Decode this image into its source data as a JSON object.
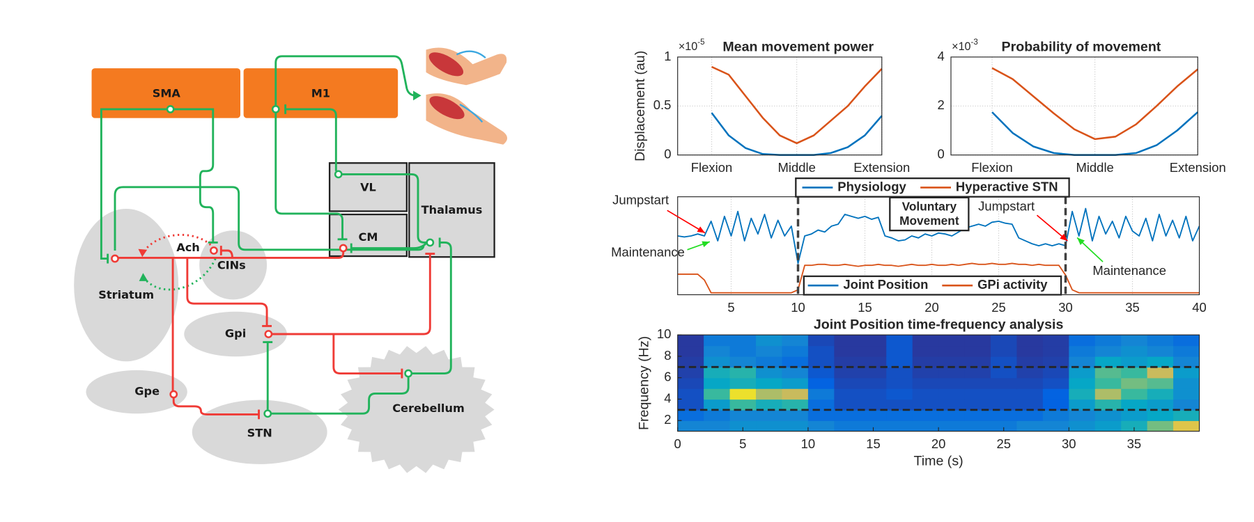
{
  "diagram": {
    "nodes": [
      "SMA",
      "M1",
      "VL",
      "CM",
      "Thalamus",
      "Striatum",
      "Ach",
      "CINs",
      "Gpi",
      "Gpe",
      "STN",
      "Cerebellum"
    ]
  },
  "chart_data": [
    {
      "type": "line",
      "title": "Mean movement power",
      "y_exponent": {
        "base": "×10",
        "exponent": "-5"
      },
      "ylabel": "Displacement (au)",
      "x": [
        0,
        10,
        20,
        30,
        40,
        50,
        60,
        70,
        80,
        90,
        100
      ],
      "xlim": [
        -20,
        100
      ],
      "ylim": [
        0,
        1
      ],
      "xticks": [
        {
          "value": 0,
          "label": "Flexion"
        },
        {
          "value": 50,
          "label": "Middle"
        },
        {
          "value": 100,
          "label": "Extension"
        }
      ],
      "yticks": [
        0,
        0.5,
        1
      ],
      "grid": true,
      "legend": true,
      "series": [
        {
          "name": "Physiology",
          "color": "#0072bd",
          "values": [
            0.43,
            0.2,
            0.07,
            0.01,
            0,
            0,
            0,
            0.02,
            0.08,
            0.2,
            0.4
          ]
        },
        {
          "name": "Hyperactive STN",
          "color": "#d95319",
          "values": [
            0.9,
            0.82,
            0.6,
            0.38,
            0.2,
            0.12,
            0.2,
            0.35,
            0.5,
            0.7,
            0.88
          ]
        }
      ]
    },
    {
      "type": "line",
      "title": "Probability of movement",
      "y_exponent": {
        "base": "×10",
        "exponent": "-3"
      },
      "x": [
        0,
        10,
        20,
        30,
        40,
        50,
        60,
        70,
        80,
        90,
        100
      ],
      "xlim": [
        -20,
        100
      ],
      "ylim": [
        0,
        4
      ],
      "xticks": [
        {
          "value": 0,
          "label": "Flexion"
        },
        {
          "value": 50,
          "label": "Middle"
        },
        {
          "value": 100,
          "label": "Extension"
        }
      ],
      "yticks": [
        0,
        2,
        4
      ],
      "grid": true,
      "series": [
        {
          "color": "#0072bd",
          "values": [
            1.75,
            0.9,
            0.35,
            0.08,
            0,
            0,
            0,
            0.08,
            0.4,
            1.0,
            1.75
          ]
        },
        {
          "color": "#d95319",
          "values": [
            3.55,
            3.1,
            2.4,
            1.7,
            1.05,
            0.65,
            0.75,
            1.25,
            2.0,
            2.8,
            3.5
          ]
        }
      ]
    },
    {
      "type": "line",
      "x": [
        1,
        1.5,
        2,
        2.5,
        3,
        3.5,
        4,
        4.5,
        5,
        5.5,
        6,
        6.5,
        7,
        7.5,
        8,
        8.5,
        9,
        9.5,
        10,
        10.5,
        11,
        11.5,
        12,
        12.5,
        13,
        13.5,
        14,
        14.5,
        15,
        15.5,
        16,
        16.5,
        17,
        17.5,
        18,
        18.5,
        19,
        19.5,
        20,
        20.5,
        21,
        21.5,
        22,
        22.5,
        23,
        23.5,
        24,
        24.5,
        25,
        25.5,
        26,
        26.5,
        27,
        27.5,
        28,
        28.5,
        29,
        29.5,
        30,
        30.5,
        31,
        31.5,
        32,
        32.5,
        33,
        33.5,
        34,
        34.5,
        35,
        35.5,
        36,
        36.5,
        37,
        37.5,
        38,
        38.5,
        39,
        39.5,
        40
      ],
      "xlim": [
        1,
        40
      ],
      "ylim": [
        0,
        1
      ],
      "xticks": [
        5,
        10,
        15,
        20,
        25,
        30,
        35,
        40
      ],
      "grid": true,
      "legend": true,
      "vlines": [
        10,
        30
      ],
      "series": [
        {
          "name": "Joint Position",
          "color": "#0072bd",
          "values": [
            0.6,
            0.59,
            0.6,
            0.62,
            0.6,
            0.75,
            0.55,
            0.8,
            0.6,
            0.85,
            0.55,
            0.78,
            0.62,
            0.82,
            0.58,
            0.76,
            0.6,
            0.7,
            0.32,
            0.6,
            0.62,
            0.66,
            0.64,
            0.7,
            0.72,
            0.82,
            0.8,
            0.78,
            0.8,
            0.77,
            0.79,
            0.6,
            0.58,
            0.55,
            0.56,
            0.6,
            0.58,
            0.62,
            0.6,
            0.63,
            0.62,
            0.6,
            0.64,
            0.68,
            0.7,
            0.72,
            0.7,
            0.74,
            0.75,
            0.73,
            0.72,
            0.58,
            0.55,
            0.52,
            0.5,
            0.52,
            0.5,
            0.52,
            0.5,
            0.85,
            0.6,
            0.88,
            0.55,
            0.8,
            0.62,
            0.75,
            0.58,
            0.8,
            0.65,
            0.6,
            0.78,
            0.55,
            0.82,
            0.6,
            0.76,
            0.58,
            0.8,
            0.55,
            0.7
          ]
        },
        {
          "name": "GPi activity",
          "color": "#d95319",
          "values": [
            0.21,
            0.21,
            0.21,
            0.21,
            0.15,
            0.02,
            0.02,
            0.02,
            0.02,
            0.02,
            0.02,
            0.02,
            0.02,
            0.02,
            0.02,
            0.02,
            0.02,
            0.02,
            0.05,
            0.3,
            0.3,
            0.31,
            0.31,
            0.3,
            0.3,
            0.31,
            0.3,
            0.29,
            0.3,
            0.3,
            0.31,
            0.3,
            0.3,
            0.29,
            0.3,
            0.31,
            0.3,
            0.3,
            0.31,
            0.3,
            0.3,
            0.31,
            0.3,
            0.31,
            0.32,
            0.31,
            0.31,
            0.32,
            0.31,
            0.31,
            0.32,
            0.31,
            0.31,
            0.3,
            0.31,
            0.3,
            0.3,
            0.3,
            0.2,
            0.05,
            0.02,
            0.02,
            0.02,
            0.02,
            0.02,
            0.02,
            0.02,
            0.02,
            0.02,
            0.02,
            0.02,
            0.02,
            0.02,
            0.02,
            0.02,
            0.02,
            0.02,
            0.02,
            0.02
          ]
        }
      ],
      "annotations": [
        {
          "text": "Jumpstart",
          "color": "#ff0000"
        },
        {
          "text": "Maintenance",
          "color": "#22dd22"
        },
        {
          "text": "Jumpstart",
          "color": "#ff0000"
        },
        {
          "text": "Maintenance",
          "color": "#22dd22"
        }
      ],
      "box_label": [
        "Voluntary",
        "Movement"
      ]
    },
    {
      "type": "heatmap",
      "title": "Joint Position time-frequency analysis",
      "xlabel": "Time (s)",
      "ylabel": "Frequency (Hz)",
      "colormap": "parula",
      "xlim": [
        0,
        40
      ],
      "ylim": [
        1,
        10
      ],
      "xticks": [
        0,
        5,
        10,
        15,
        20,
        25,
        30,
        35
      ],
      "yticks": [
        2,
        4,
        6,
        8,
        10
      ],
      "hlines": [
        3,
        7
      ],
      "x_edges": [
        0,
        2,
        4,
        6,
        8,
        10,
        12,
        14,
        16,
        18,
        20,
        22,
        24,
        26,
        28,
        30,
        32,
        34,
        36,
        38,
        40
      ],
      "y_edges": [
        1,
        2,
        3,
        4,
        5,
        6,
        7,
        8,
        9,
        10
      ],
      "z": [
        [
          0.3,
          0.3,
          0.35,
          0.35,
          0.35,
          0.3,
          0.25,
          0.25,
          0.25,
          0.25,
          0.25,
          0.25,
          0.25,
          0.3,
          0.3,
          0.35,
          0.4,
          0.5,
          0.7,
          0.9
        ],
        [
          0.2,
          0.25,
          0.3,
          0.3,
          0.3,
          0.2,
          0.2,
          0.2,
          0.2,
          0.2,
          0.2,
          0.2,
          0.2,
          0.2,
          0.25,
          0.3,
          0.35,
          0.4,
          0.45,
          0.5
        ],
        [
          0.1,
          0.4,
          0.6,
          0.5,
          0.55,
          0.2,
          0.1,
          0.1,
          0.1,
          0.1,
          0.1,
          0.1,
          0.1,
          0.1,
          0.15,
          0.4,
          0.55,
          0.45,
          0.4,
          0.3
        ],
        [
          0.1,
          0.6,
          0.95,
          0.8,
          0.85,
          0.25,
          0.1,
          0.1,
          0.12,
          0.1,
          0.1,
          0.1,
          0.1,
          0.1,
          0.15,
          0.5,
          0.8,
          0.6,
          0.5,
          0.35
        ],
        [
          0.08,
          0.45,
          0.5,
          0.45,
          0.4,
          0.15,
          0.08,
          0.08,
          0.1,
          0.08,
          0.08,
          0.08,
          0.08,
          0.08,
          0.1,
          0.45,
          0.6,
          0.7,
          0.65,
          0.35
        ],
        [
          0.06,
          0.5,
          0.55,
          0.35,
          0.3,
          0.12,
          0.06,
          0.06,
          0.1,
          0.06,
          0.06,
          0.06,
          0.1,
          0.06,
          0.08,
          0.4,
          0.65,
          0.6,
          0.85,
          0.4
        ],
        [
          0.05,
          0.35,
          0.3,
          0.25,
          0.2,
          0.1,
          0.05,
          0.05,
          0.12,
          0.05,
          0.05,
          0.05,
          0.1,
          0.05,
          0.06,
          0.3,
          0.45,
          0.4,
          0.45,
          0.3
        ],
        [
          0.04,
          0.3,
          0.25,
          0.3,
          0.25,
          0.1,
          0.04,
          0.04,
          0.12,
          0.04,
          0.04,
          0.04,
          0.08,
          0.04,
          0.05,
          0.25,
          0.3,
          0.35,
          0.3,
          0.25
        ],
        [
          0.04,
          0.25,
          0.25,
          0.35,
          0.3,
          0.08,
          0.04,
          0.04,
          0.12,
          0.04,
          0.04,
          0.04,
          0.08,
          0.04,
          0.05,
          0.2,
          0.25,
          0.3,
          0.25,
          0.2
        ]
      ]
    }
  ]
}
